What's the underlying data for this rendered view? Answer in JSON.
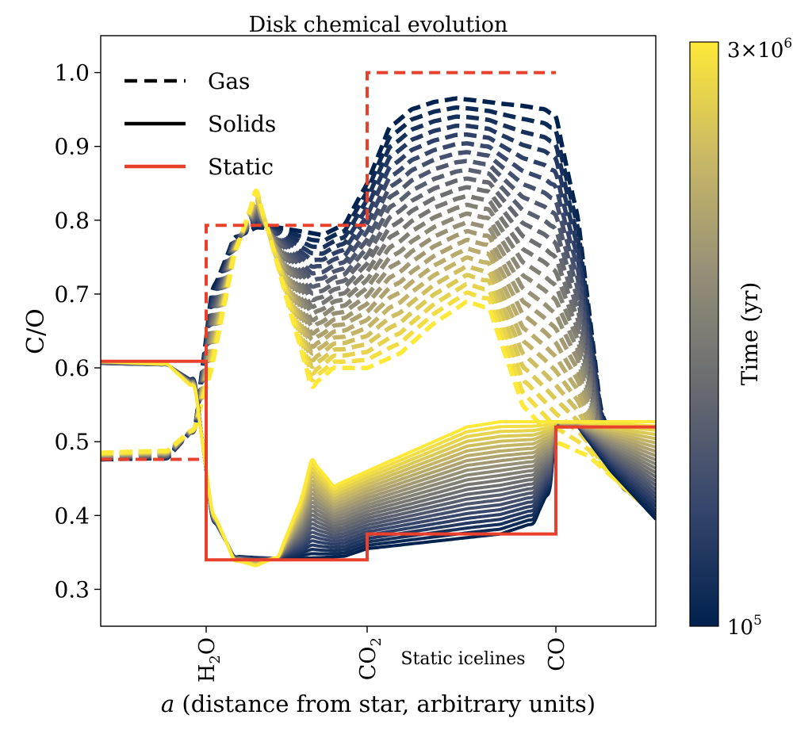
{
  "chart_data": {
    "type": "line",
    "title": "Disk chemical evolution",
    "xlabel": "a (distance from star, arbitrary units)",
    "ylabel": "C/O",
    "xlim": [
      0,
      10
    ],
    "ylim": [
      0.25,
      1.05
    ],
    "y_ticks": [
      0.3,
      0.4,
      0.5,
      0.6,
      0.7,
      0.8,
      0.9,
      1.0
    ],
    "y_tick_labels": [
      "0.3",
      "0.4",
      "0.5",
      "0.6",
      "0.7",
      "0.8",
      "0.9",
      "1.0"
    ],
    "x_annotation": "Static icelines",
    "icelines": [
      {
        "label": "H2O",
        "label_main": "H",
        "label_sub": "2",
        "label_tail": "O",
        "x": 1.9
      },
      {
        "label": "CO2",
        "label_main": "CO",
        "label_sub": "2",
        "label_tail": "",
        "x": 4.8
      },
      {
        "label": "CO",
        "label_main": "CO",
        "label_sub": "",
        "label_tail": "",
        "x": 8.2
      }
    ],
    "legend": {
      "placement": "upper-left",
      "entries": [
        {
          "label": "Gas",
          "style": "dashed",
          "color": "#000000"
        },
        {
          "label": "Solids",
          "style": "solid",
          "color": "#000000"
        },
        {
          "label": "Static",
          "style": "solid",
          "color": "#e8402a"
        }
      ]
    },
    "colorbar": {
      "label": "Time (yr)",
      "scale": "log",
      "min_label": "10",
      "min_exp": "5",
      "max_label_prefix": "3×10",
      "max_exp": "6",
      "colormap": "cividis",
      "colors": [
        "#00224e",
        "#35456c",
        "#666970",
        "#948e77",
        "#c8b866",
        "#fee838"
      ]
    },
    "series": [
      {
        "group": "static",
        "phase": "gas",
        "color": "#e8402a",
        "style": "dashed",
        "x": [
          0,
          1.9,
          1.9,
          4.8,
          4.8,
          8.2
        ],
        "y": [
          0.476,
          0.476,
          0.793,
          0.793,
          1.0,
          1.0
        ]
      },
      {
        "group": "static",
        "phase": "solids",
        "color": "#e8402a",
        "style": "solid",
        "x": [
          0,
          1.9,
          1.9,
          4.8,
          4.8,
          8.2,
          8.2,
          10
        ],
        "y": [
          0.609,
          0.609,
          0.34,
          0.34,
          0.375,
          0.375,
          0.52,
          0.52
        ]
      },
      {
        "group": "evolved",
        "phase": "gas",
        "time": "early",
        "style": "dashed",
        "x": [
          0,
          1.2,
          1.7,
          2.0,
          2.4,
          2.8,
          3.2,
          3.6,
          4.0,
          4.4,
          4.8,
          5.2,
          5.6,
          6.0,
          6.4,
          6.8,
          7.2,
          7.6,
          8.0,
          8.2,
          8.6,
          9.0,
          9.4,
          10
        ],
        "y": [
          0.476,
          0.478,
          0.52,
          0.7,
          0.775,
          0.79,
          0.79,
          0.785,
          0.78,
          0.795,
          0.85,
          0.925,
          0.95,
          0.96,
          0.965,
          0.962,
          0.958,
          0.955,
          0.95,
          0.94,
          0.8,
          0.55,
          0.44,
          0.4
        ]
      },
      {
        "group": "evolved",
        "phase": "gas",
        "time": "late",
        "style": "dashed",
        "x": [
          0,
          1.2,
          1.7,
          2.0,
          2.4,
          2.8,
          3.0,
          3.4,
          3.8,
          4.2,
          4.8,
          5.4,
          6.0,
          6.6,
          7.0,
          7.6,
          8.2,
          8.8,
          9.4,
          10
        ],
        "y": [
          0.485,
          0.488,
          0.52,
          0.6,
          0.75,
          0.84,
          0.79,
          0.68,
          0.575,
          0.6,
          0.6,
          0.62,
          0.66,
          0.69,
          0.68,
          0.55,
          0.5,
          0.48,
          0.44,
          0.4
        ]
      },
      {
        "group": "evolved",
        "phase": "solids",
        "time": "early",
        "style": "solid",
        "x": [
          0,
          1.2,
          1.7,
          2.0,
          2.4,
          2.8,
          3.2,
          3.6,
          4.0,
          4.4,
          4.8,
          5.4,
          6.0,
          6.6,
          7.2,
          7.8,
          8.1,
          8.2,
          8.6,
          9.2,
          10
        ],
        "y": [
          0.606,
          0.604,
          0.58,
          0.4,
          0.345,
          0.343,
          0.342,
          0.342,
          0.343,
          0.345,
          0.355,
          0.36,
          0.365,
          0.37,
          0.375,
          0.39,
          0.44,
          0.52,
          0.52,
          0.46,
          0.395
        ]
      },
      {
        "group": "evolved",
        "phase": "solids",
        "time": "late",
        "style": "solid",
        "x": [
          0,
          1.2,
          1.7,
          2.0,
          2.4,
          2.8,
          3.2,
          3.6,
          3.8,
          4.2,
          4.8,
          5.4,
          6.0,
          6.6,
          7.2,
          7.8,
          8.2,
          8.8,
          9.4,
          10
        ],
        "y": [
          0.609,
          0.605,
          0.57,
          0.41,
          0.34,
          0.332,
          0.345,
          0.42,
          0.475,
          0.44,
          0.46,
          0.48,
          0.5,
          0.52,
          0.527,
          0.527,
          0.527,
          0.527,
          0.527,
          0.527
        ]
      }
    ]
  }
}
